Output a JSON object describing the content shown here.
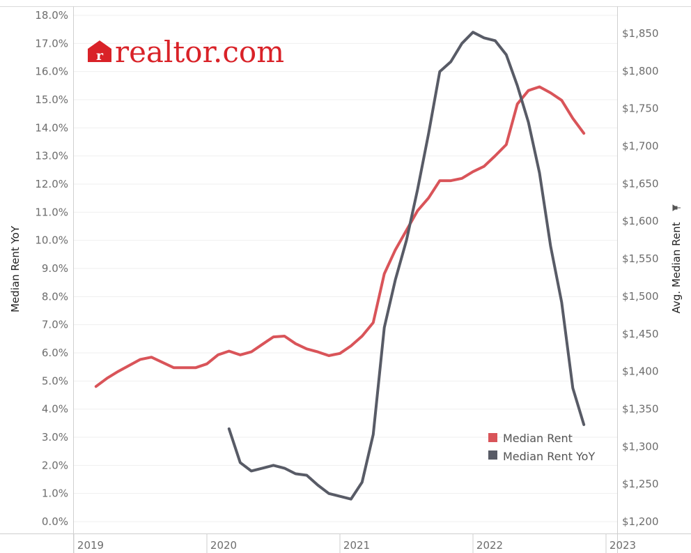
{
  "logo": {
    "text": "realtor.com",
    "badge_letter": "r",
    "color": "#d92228"
  },
  "chart_data": {
    "type": "line",
    "x_ticks": [
      "2019",
      "2020",
      "2021",
      "2022",
      "2023"
    ],
    "y_left": {
      "label": "Median Rent YoY",
      "ticks": [
        "0.0%",
        "1.0%",
        "2.0%",
        "3.0%",
        "4.0%",
        "5.0%",
        "6.0%",
        "7.0%",
        "8.0%",
        "9.0%",
        "10.0%",
        "11.0%",
        "12.0%",
        "13.0%",
        "14.0%",
        "15.0%",
        "16.0%",
        "17.0%",
        "18.0%"
      ],
      "range": [
        0,
        18
      ]
    },
    "y_right": {
      "label": "Avg. Median Rent",
      "ticks": [
        "$1,200",
        "$1,250",
        "$1,300",
        "$1,350",
        "$1,400",
        "$1,450",
        "$1,500",
        "$1,550",
        "$1,600",
        "$1,650",
        "$1,700",
        "$1,750",
        "$1,800",
        "$1,850"
      ],
      "range": [
        1200,
        1850
      ]
    },
    "legend": {
      "position": "bottom-right"
    },
    "series": [
      {
        "name": "Median Rent",
        "axis": "right",
        "color": "#d95459",
        "points": [
          [
            "2019-03",
            1380
          ],
          [
            "2019-04",
            1391
          ],
          [
            "2019-05",
            1400
          ],
          [
            "2019-06",
            1408
          ],
          [
            "2019-07",
            1416
          ],
          [
            "2019-08",
            1419
          ],
          [
            "2019-09",
            1412
          ],
          [
            "2019-10",
            1405
          ],
          [
            "2019-11",
            1405
          ],
          [
            "2019-12",
            1405
          ],
          [
            "2020-01",
            1410
          ],
          [
            "2020-02",
            1422
          ],
          [
            "2020-03",
            1427
          ],
          [
            "2020-04",
            1422
          ],
          [
            "2020-05",
            1426
          ],
          [
            "2020-06",
            1436
          ],
          [
            "2020-07",
            1446
          ],
          [
            "2020-08",
            1447
          ],
          [
            "2020-09",
            1437
          ],
          [
            "2020-10",
            1430
          ],
          [
            "2020-11",
            1426
          ],
          [
            "2020-12",
            1421
          ],
          [
            "2021-01",
            1424
          ],
          [
            "2021-02",
            1434
          ],
          [
            "2021-03",
            1447
          ],
          [
            "2021-04",
            1465
          ],
          [
            "2021-05",
            1530
          ],
          [
            "2021-06",
            1562
          ],
          [
            "2021-07",
            1588
          ],
          [
            "2021-08",
            1614
          ],
          [
            "2021-09",
            1631
          ],
          [
            "2021-10",
            1654
          ],
          [
            "2021-11",
            1654
          ],
          [
            "2021-12",
            1657
          ],
          [
            "2022-01",
            1666
          ],
          [
            "2022-02",
            1673
          ],
          [
            "2022-03",
            1687
          ],
          [
            "2022-04",
            1702
          ],
          [
            "2022-05",
            1756
          ],
          [
            "2022-06",
            1774
          ],
          [
            "2022-07",
            1779
          ],
          [
            "2022-08",
            1771
          ],
          [
            "2022-09",
            1761
          ],
          [
            "2022-10",
            1737
          ],
          [
            "2022-11",
            1717
          ]
        ]
      },
      {
        "name": "Median Rent YoY",
        "axis": "left",
        "color": "#585b66",
        "points": [
          [
            "2020-03",
            3.3
          ],
          [
            "2020-04",
            2.1
          ],
          [
            "2020-05",
            1.8
          ],
          [
            "2020-06",
            1.9
          ],
          [
            "2020-07",
            2.0
          ],
          [
            "2020-08",
            1.9
          ],
          [
            "2020-09",
            1.7
          ],
          [
            "2020-10",
            1.65
          ],
          [
            "2020-11",
            1.3
          ],
          [
            "2020-12",
            1.0
          ],
          [
            "2021-01",
            0.9
          ],
          [
            "2021-02",
            0.8
          ],
          [
            "2021-03",
            1.4
          ],
          [
            "2021-04",
            3.1
          ],
          [
            "2021-05",
            6.9
          ],
          [
            "2021-06",
            8.6
          ],
          [
            "2021-07",
            10.0
          ],
          [
            "2021-08",
            11.8
          ],
          [
            "2021-09",
            13.8
          ],
          [
            "2021-10",
            16.0
          ],
          [
            "2021-11",
            16.35
          ],
          [
            "2021-12",
            17.0
          ],
          [
            "2022-01",
            17.4
          ],
          [
            "2022-02",
            17.2
          ],
          [
            "2022-03",
            17.1
          ],
          [
            "2022-04",
            16.6
          ],
          [
            "2022-05",
            15.5
          ],
          [
            "2022-06",
            14.2
          ],
          [
            "2022-07",
            12.4
          ],
          [
            "2022-08",
            9.8
          ],
          [
            "2022-09",
            7.8
          ],
          [
            "2022-10",
            4.75
          ],
          [
            "2022-11",
            3.45
          ]
        ]
      }
    ]
  }
}
